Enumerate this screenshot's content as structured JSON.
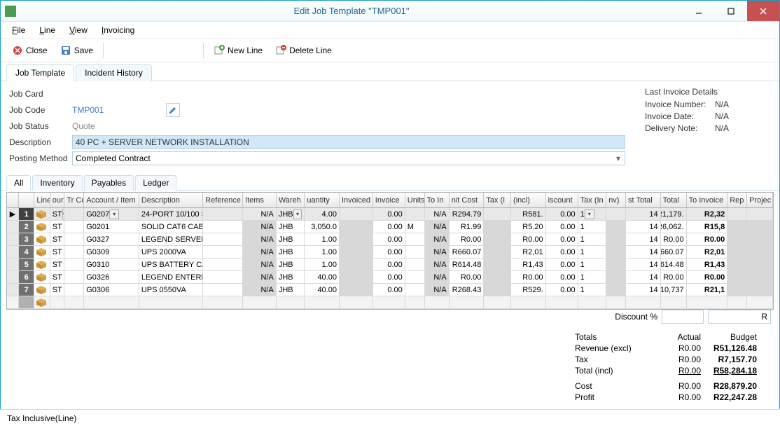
{
  "window": {
    "title": "Edit Job Template \"TMP001\"",
    "menu": [
      "File",
      "Line",
      "View",
      "Invoicing"
    ]
  },
  "toolbar": {
    "close": "Close",
    "save": "Save",
    "newline": "New Line",
    "deleteline": "Delete Line"
  },
  "mainTabs": {
    "jobTemplate": "Job Template",
    "incidentHistory": "Incident History",
    "active": 0
  },
  "form": {
    "jobCardLabel": "Job Card",
    "jobCodeLabel": "Job Code",
    "jobCode": "TMP001",
    "jobStatusLabel": "Job Status",
    "jobStatus": "Quote",
    "descriptionLabel": "Description",
    "description": "40 PC + SERVER NETWORK INSTALLATION",
    "postingMethodLabel": "Posting Method",
    "postingMethod": "Completed Contract"
  },
  "invoiceDetails": {
    "head": "Last Invoice Details",
    "numLabel": "Invoice Number:",
    "num": "N/A",
    "dateLabel": "Invoice Date:",
    "date": "N/A",
    "noteLabel": "Delivery Note:",
    "note": "N/A"
  },
  "gridTabs": [
    "All",
    "Inventory",
    "Payables",
    "Ledger"
  ],
  "gridActiveTab": 0,
  "gridColumns": [
    "",
    "Line",
    "ourc",
    "Tr Co",
    "Account / Item",
    "Description",
    "Reference",
    "Items",
    "Wareh",
    "uantity",
    "Invoiced",
    "Invoice",
    "Units",
    "To In",
    "nit Cost",
    "Tax (I",
    "(incl)",
    "iscount",
    "Tax (In",
    "nv)",
    "st Total",
    "Total",
    "To Invoice",
    "Rep",
    "Projec"
  ],
  "rows": [
    {
      "n": "1",
      "sel": true,
      "tr": "ST",
      "acct": "G0207",
      "desc": "24-PORT 10/100 S",
      "items": "N/A",
      "wh": "JHB",
      "qty": "4.00",
      "inv": "",
      "invp": "0.00",
      "units": "",
      "toin": "N/A",
      "unitc": "R294.79",
      "tax1": "",
      "incl": "R581.",
      "disc": "0.00",
      "tax2": "1",
      "nv": "",
      "sttot": "14",
      "tot": "R1,179.",
      "toinv": "R2,32"
    },
    {
      "n": "2",
      "tr": "ST",
      "acct": "G0201",
      "desc": "SOLID CAT6 CABL",
      "items": "N/A",
      "wh": "JHB",
      "qty": "3,050.0",
      "inv": "",
      "invp": "0.00",
      "units": "M",
      "toin": "N/A",
      "unitc": "R1.99",
      "tax1": "",
      "incl": "R5.20",
      "disc": "0.00",
      "tax2": "1",
      "nv": "",
      "sttot": "14",
      "tot": "R6,062.",
      "toinv": "R15,8"
    },
    {
      "n": "3",
      "tr": "ST",
      "acct": "G0327",
      "desc": "LEGEND SERVER",
      "items": "N/A",
      "wh": "JHB",
      "qty": "1.00",
      "inv": "",
      "invp": "0.00",
      "units": "",
      "toin": "N/A",
      "unitc": "R0.00",
      "tax1": "",
      "incl": "R0.00",
      "disc": "0.00",
      "tax2": "1",
      "nv": "",
      "sttot": "14",
      "tot": "R0.00",
      "toinv": "R0.00"
    },
    {
      "n": "4",
      "tr": "ST",
      "acct": "G0309",
      "desc": "UPS 2000VA",
      "items": "N/A",
      "wh": "JHB",
      "qty": "1.00",
      "inv": "",
      "invp": "0.00",
      "units": "",
      "toin": "N/A",
      "unitc": "R660.07",
      "tax1": "",
      "incl": "R2,01",
      "disc": "0.00",
      "tax2": "1",
      "nv": "",
      "sttot": "14",
      "tot": "R660.07",
      "toinv": "R2,01"
    },
    {
      "n": "5",
      "tr": "ST",
      "acct": "G0310",
      "desc": "UPS BATTERY CA:",
      "items": "N/A",
      "wh": "JHB",
      "qty": "1.00",
      "inv": "",
      "invp": "0.00",
      "units": "",
      "toin": "N/A",
      "unitc": "R614.48",
      "tax1": "",
      "incl": "R1,43",
      "disc": "0.00",
      "tax2": "1",
      "nv": "",
      "sttot": "14",
      "tot": "R614.48",
      "toinv": "R1,43"
    },
    {
      "n": "6",
      "tr": "ST",
      "acct": "G0326",
      "desc": "LEGEND ENTERPR",
      "items": "N/A",
      "wh": "JHB",
      "qty": "40.00",
      "inv": "",
      "invp": "0.00",
      "units": "",
      "toin": "N/A",
      "unitc": "R0.00",
      "tax1": "",
      "incl": "R0.00",
      "disc": "0.00",
      "tax2": "1",
      "nv": "",
      "sttot": "14",
      "tot": "R0.00",
      "toinv": "R0.00"
    },
    {
      "n": "7",
      "tr": "ST",
      "acct": "G0306",
      "desc": "UPS 0550VA",
      "items": "N/A",
      "wh": "JHB",
      "qty": "40.00",
      "inv": "",
      "invp": "0.00",
      "units": "",
      "toin": "N/A",
      "unitc": "R268.43",
      "tax1": "",
      "incl": "R529.",
      "disc": "0.00",
      "tax2": "1",
      "nv": "",
      "sttot": "14",
      "tot": "R10,737",
      "toinv": "R21,1"
    }
  ],
  "totals": {
    "discountLabel": "Discount %",
    "discountVal": "",
    "discountAmt": "R",
    "head": "Totals",
    "actualHead": "Actual",
    "budgetHead": "Budget",
    "revLabel": "Revenue (excl)",
    "revA": "R0.00",
    "revB": "R51,126.48",
    "taxLabel": "Tax",
    "taxA": "R0.00",
    "taxB": "R7,157.70",
    "totLabel": "Total (incl)",
    "totA": "R0.00",
    "totB": "R58,284.18",
    "costLabel": "Cost",
    "costA": "R0.00",
    "costB": "R28,879.20",
    "profLabel": "Profit",
    "profA": "R0.00",
    "profB": "R22,247.28"
  },
  "status": "Tax Inclusive(Line)"
}
